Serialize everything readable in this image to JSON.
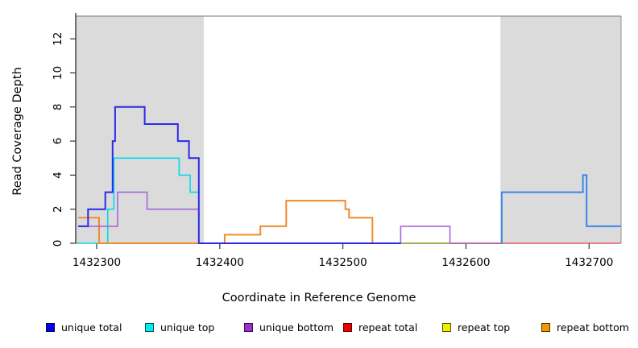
{
  "figure": {
    "x_axis_title": "Coordinate in Reference Genome",
    "y_axis_title": "Read Coverage Depth"
  },
  "chart_data": {
    "type": "line",
    "subtype": "step",
    "title": "",
    "xlabel": "Coordinate in Reference Genome",
    "ylabel": "Read Coverage Depth",
    "xlim": [
      1432283,
      1432726
    ],
    "ylim": [
      0,
      13.3
    ],
    "x_ticks": [
      1432300,
      1432400,
      1432500,
      1432600,
      1432700
    ],
    "y_ticks": [
      0,
      2,
      4,
      6,
      8,
      10,
      12
    ],
    "grid": false,
    "background": "#ffffff",
    "shaded_regions": [
      {
        "name": "left-repeat-region",
        "x1": 1432283,
        "x2": 1432387,
        "color": "#DBDBDB"
      },
      {
        "name": "right-repeat-region",
        "x1": 1432628,
        "x2": 1432726,
        "color": "#DBDBDB"
      }
    ],
    "series": [
      {
        "name": "repeat total",
        "color": "#E23B55",
        "width": 1.3,
        "steps": [
          [
            1432628,
            0
          ]
        ],
        "end": 1432726
      },
      {
        "name": "unique top",
        "color": "#00DBE8",
        "width": 1.6,
        "steps": [
          [
            1432285,
            0
          ],
          [
            1432309,
            2
          ],
          [
            1432314,
            5
          ],
          [
            1432367,
            4
          ],
          [
            1432376,
            3
          ],
          [
            1432383,
            0
          ]
        ],
        "end": 1432628
      },
      {
        "name": "repeat bottom",
        "color": "#F08C28",
        "width": 2,
        "steps": [
          [
            1432285,
            1.5
          ],
          [
            1432302,
            0
          ],
          [
            1432404,
            0.5
          ],
          [
            1432433,
            1
          ],
          [
            1432454,
            2.5
          ],
          [
            1432502,
            2
          ],
          [
            1432505,
            1.5
          ],
          [
            1432524,
            0
          ]
        ],
        "end": 1432628
      },
      {
        "name": "unlabeled green segment",
        "color": "#6FBF73",
        "width": 1.3,
        "steps": [
          [
            1432547,
            0
          ]
        ],
        "end": 1432587
      },
      {
        "name": "unique bottom",
        "color": "#A964DB",
        "width": 1.6,
        "steps": [
          [
            1432285,
            1
          ],
          [
            1432317,
            3
          ],
          [
            1432341,
            2
          ],
          [
            1432383,
            0
          ],
          [
            1432547,
            1
          ],
          [
            1432587,
            0
          ]
        ],
        "end": 1432628
      },
      {
        "name": "unique total",
        "color": "#2A2AE8",
        "width": 2,
        "steps": [
          [
            1432285,
            1
          ],
          [
            1432293,
            2
          ],
          [
            1432307,
            3
          ],
          [
            1432313,
            6
          ],
          [
            1432315,
            8
          ],
          [
            1432339,
            7
          ],
          [
            1432366,
            6
          ],
          [
            1432375,
            5
          ],
          [
            1432383,
            0
          ]
        ],
        "end": 1432547
      },
      {
        "name": "unlabeled bright blue",
        "color": "#3A86EC",
        "width": 2,
        "steps": [
          [
            1432628,
            0
          ],
          [
            1432629,
            3
          ],
          [
            1432695,
            4
          ],
          [
            1432698,
            1
          ]
        ],
        "end": 1432726
      }
    ],
    "legend": {
      "position": "bottom",
      "entries": [
        {
          "label": "unique total",
          "color": "#0000EE"
        },
        {
          "label": "unique top",
          "color": "#00EEEE"
        },
        {
          "label": "unique bottom",
          "color": "#9932CC"
        },
        {
          "label": "repeat total",
          "color": "#EE0000"
        },
        {
          "label": "repeat top",
          "color": "#EEEE00"
        },
        {
          "label": "repeat bottom",
          "color": "#EE9900"
        }
      ]
    }
  }
}
